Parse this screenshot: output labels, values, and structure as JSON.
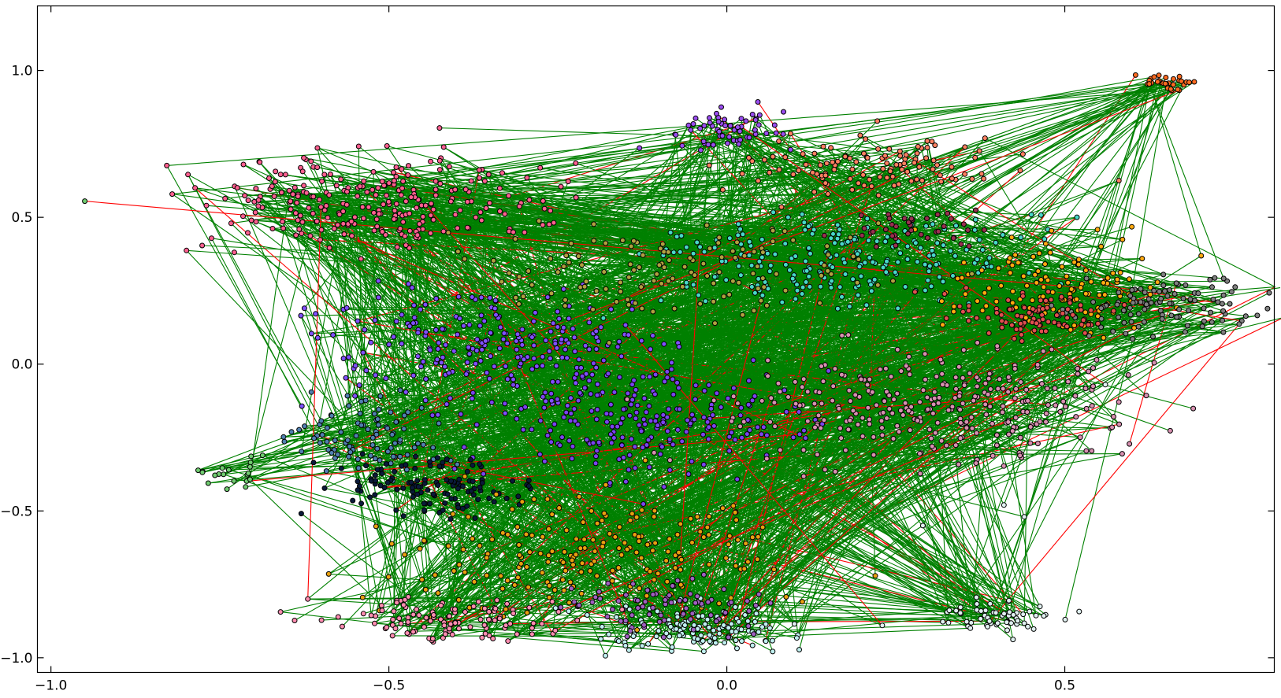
{
  "chart_data": {
    "type": "scatter",
    "title": "",
    "xlabel": "",
    "ylabel": "",
    "xlim": [
      -1.02,
      0.81
    ],
    "ylim": [
      -1.05,
      1.22
    ],
    "grid": false,
    "legend": "none",
    "x_ticks": [
      {
        "value": -1.0,
        "label": "−1.0"
      },
      {
        "value": -0.5,
        "label": "−0.5"
      },
      {
        "value": 0.0,
        "label": "0.0"
      },
      {
        "value": 0.5,
        "label": "0.5"
      }
    ],
    "y_ticks": [
      {
        "value": 1.0,
        "label": "1.0"
      },
      {
        "value": 0.5,
        "label": "0.5"
      },
      {
        "value": 0.0,
        "label": "0.0"
      },
      {
        "value": -0.5,
        "label": "−0.5"
      },
      {
        "value": -1.0,
        "label": "−1.0"
      }
    ],
    "edge_colors": {
      "green": "#008000",
      "red": "#ff0000"
    },
    "clusters": [
      {
        "color": "#ff5f8f",
        "center": [
          -0.52,
          0.55
        ],
        "spread": [
          0.12,
          0.08
        ],
        "count": 260
      },
      {
        "color": "#9a4df0",
        "center": [
          0.0,
          0.79
        ],
        "spread": [
          0.045,
          0.04
        ],
        "count": 60
      },
      {
        "color": "#ff8060",
        "center": [
          0.22,
          0.68
        ],
        "spread": [
          0.09,
          0.05
        ],
        "count": 110
      },
      {
        "color": "#ff6a20",
        "center": [
          0.65,
          0.96
        ],
        "spread": [
          0.025,
          0.015
        ],
        "count": 30
      },
      {
        "color": "#48d8c8",
        "center": [
          0.16,
          0.35
        ],
        "spread": [
          0.14,
          0.08
        ],
        "count": 230
      },
      {
        "color": "#8050ff",
        "center": [
          -0.33,
          0.07
        ],
        "spread": [
          0.12,
          0.09
        ],
        "count": 230
      },
      {
        "color": "#7a44ee",
        "center": [
          -0.12,
          -0.2
        ],
        "spread": [
          0.12,
          0.09
        ],
        "count": 230
      },
      {
        "color": "#d890b0",
        "center": [
          0.3,
          -0.15
        ],
        "spread": [
          0.15,
          0.1
        ],
        "count": 300
      },
      {
        "color": "#ffaa10",
        "center": [
          0.49,
          0.26
        ],
        "spread": [
          0.08,
          0.08
        ],
        "count": 140
      },
      {
        "color": "#808080",
        "center": [
          0.64,
          0.2
        ],
        "spread": [
          0.07,
          0.05
        ],
        "count": 110
      },
      {
        "color": "#e05050",
        "center": [
          0.45,
          0.16
        ],
        "spread": [
          0.06,
          0.04
        ],
        "count": 90
      },
      {
        "color": "#b0a040",
        "center": [
          -0.05,
          0.3
        ],
        "spread": [
          0.15,
          0.09
        ],
        "count": 130
      },
      {
        "color": "#5080b0",
        "center": [
          -0.52,
          -0.25
        ],
        "spread": [
          0.06,
          0.06
        ],
        "count": 90
      },
      {
        "color": "#0a1a3a",
        "center": [
          -0.44,
          -0.41
        ],
        "spread": [
          0.07,
          0.05
        ],
        "count": 120
      },
      {
        "color": "#e8a010",
        "center": [
          -0.2,
          -0.65
        ],
        "spread": [
          0.14,
          0.1
        ],
        "count": 200
      },
      {
        "color": "#c0f0f0",
        "center": [
          -0.05,
          -0.9
        ],
        "spread": [
          0.07,
          0.04
        ],
        "count": 130
      },
      {
        "color": "#a060c0",
        "center": [
          -0.1,
          -0.82
        ],
        "spread": [
          0.07,
          0.05
        ],
        "count": 80
      },
      {
        "color": "#ff8db0",
        "center": [
          -0.42,
          -0.87
        ],
        "spread": [
          0.1,
          0.04
        ],
        "count": 110
      },
      {
        "color": "#e0f0f0",
        "center": [
          0.4,
          -0.86
        ],
        "spread": [
          0.04,
          0.03
        ],
        "count": 60
      },
      {
        "color": "#70cc70",
        "center": [
          -0.74,
          -0.37
        ],
        "spread": [
          0.03,
          0.03
        ],
        "count": 20
      },
      {
        "color": "#9a3050",
        "center": [
          0.28,
          0.46
        ],
        "spread": [
          0.05,
          0.03
        ],
        "count": 40
      }
    ],
    "outliers": [
      {
        "x": -0.95,
        "y": 0.555,
        "color": "#70cc70"
      },
      {
        "x": -0.77,
        "y": 0.54,
        "color": "#ff5f8f"
      },
      {
        "x": 0.58,
        "y": 0.625,
        "color": "#ff8060"
      },
      {
        "x": 0.56,
        "y": -0.07,
        "color": "#e0f0f0"
      },
      {
        "x": 0.44,
        "y": -0.52,
        "color": "#e0f0f0"
      },
      {
        "x": 0.29,
        "y": -0.55,
        "color": "#e0f0f0"
      },
      {
        "x": 0.23,
        "y": -0.89,
        "color": "#e0f0f0"
      },
      {
        "x": 0.1,
        "y": -0.885,
        "color": "#e0f0f0"
      },
      {
        "x": 0.41,
        "y": -0.48,
        "color": "#e0f0f0"
      },
      {
        "x": -0.62,
        "y": -0.8,
        "color": "#ff8db0"
      }
    ]
  }
}
